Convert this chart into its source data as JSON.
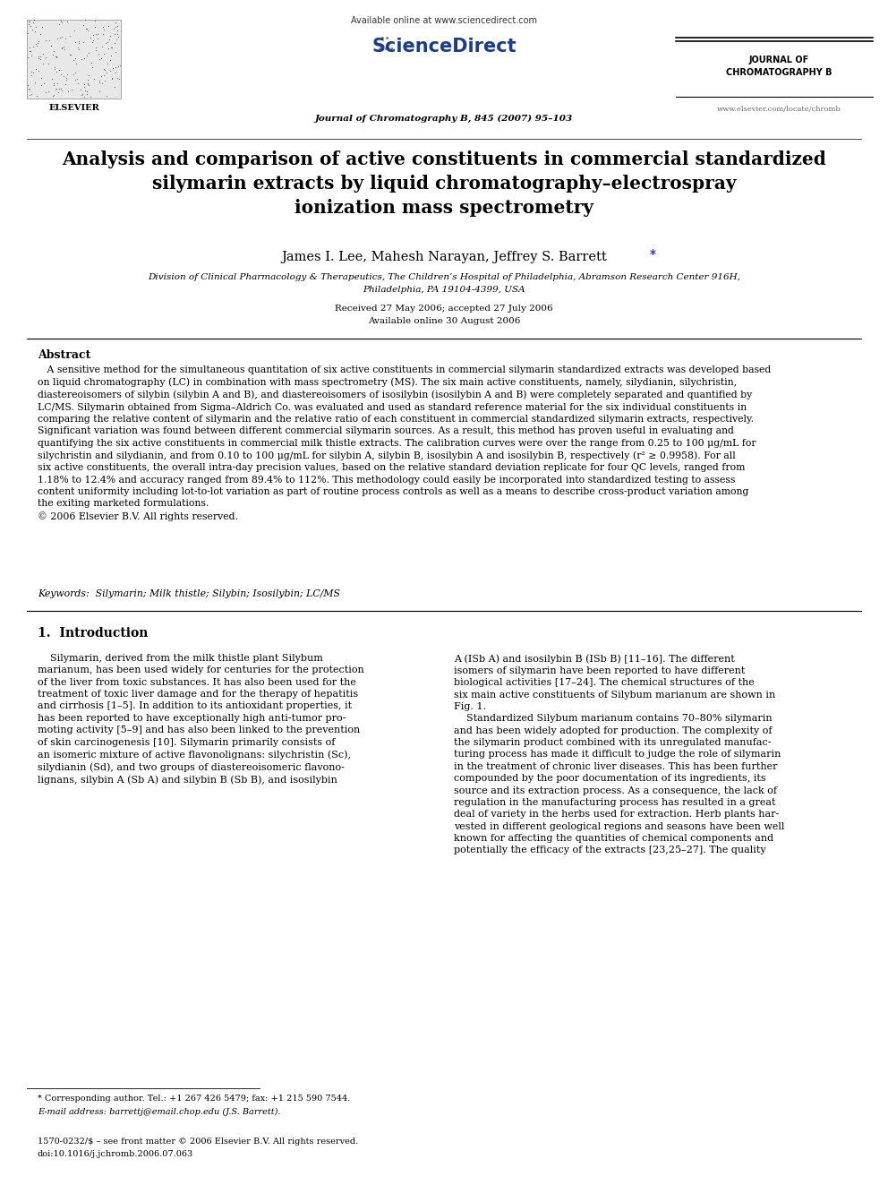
{
  "bg_color": "#ffffff",
  "figsize": [
    9.92,
    13.23
  ],
  "dpi": 100,
  "header": {
    "available_online": "Available online at www.sciencedirect.com",
    "sciencedirect": "● ScienceDirect",
    "journal_name_top": "JOURNAL OF\nCHROMATOGRAPHY B",
    "journal_line": "Journal of Chromatography B, 845 (2007) 95–103",
    "elsevier": "ELSEVIER",
    "website": "www.elsevier.com/locate/chromb"
  },
  "title": "Analysis and comparison of active constituents in commercial standardized\nsilymarin extracts by liquid chromatography–electrospray\nionization mass spectrometry",
  "authors": "James I. Lee, Mahesh Narayan, Jeffrey S. Barrett",
  "authors_star": "*",
  "affiliation_line1": "Division of Clinical Pharmacology & Therapeutics, The Children’s Hospital of Philadelphia, Abramson Research Center 916H,",
  "affiliation_line2": "Philadelphia, PA 19104-4399, USA",
  "received": "Received 27 May 2006; accepted 27 July 2006",
  "available": "Available online 30 August 2006",
  "abstract_title": "Abstract",
  "abstract_indent": "   A sensitive method for the simultaneous quantitation of six active constituents in commercial silymarin standardized extracts was developed based",
  "abstract_body": "on liquid chromatography (LC) in combination with mass spectrometry (MS). The six main active constituents, namely, silydianin, silychristin,\ndiastereoisomers of silybin (silybin A and B), and diastereoisomers of isosilybin (isosilybin A and B) were completely separated and quantified by\nLC/MS. Silymarin obtained from Sigma–Aldrich Co. was evaluated and used as standard reference material for the six individual constituents in\ncomparing the relative content of silymarin and the relative ratio of each constituent in commercial standardized silymarin extracts, respectively.\nSignificant variation was found between different commercial silymarin sources. As a result, this method has proven useful in evaluating and\nquantifying the six active constituents in commercial milk thistle extracts. The calibration curves were over the range from 0.25 to 100 μg/mL for\nsilychristin and silydianin, and from 0.10 to 100 μg/mL for silybin A, silybin B, isosilybin A and isosilybin B, respectively (r² ≥ 0.9958). For all\nsix active constituents, the overall intra-day precision values, based on the relative standard deviation replicate for four QC levels, ranged from\n1.18% to 12.4% and accuracy ranged from 89.4% to 112%. This methodology could easily be incorporated into standardized testing to assess\ncontent uniformity including lot-to-lot variation as part of routine process controls as well as a means to describe cross-product variation among\nthe exiting marketed formulations.\n© 2006 Elsevier B.V. All rights reserved.",
  "keywords": "Keywords:  Silymarin; Milk thistle; Silybin; Isosilybin; LC/MS",
  "section1_title": "1.  Introduction",
  "intro_col1_para": "    Silymarin, derived from the milk thistle plant Silybum\nmarianum, has been used widely for centuries for the protection\nof the liver from toxic substances. It has also been used for the\ntreatment of toxic liver damage and for the therapy of hepatitis\nand cirrhosis [1–5]. In addition to its antioxidant properties, it\nhas been reported to have exceptionally high anti-tumor pro-\nmoting activity [5–9] and has also been linked to the prevention\nof skin carcinogenesis [10]. Silymarin primarily consists of\nan isomeric mixture of active flavonolignans: silychristin (Sc),\nsilydianin (Sd), and two groups of diastereoisomeric flavono-\nlignans, silybin A (Sb A) and silybin B (Sb B), and isosilybin",
  "intro_col2_para": "A (ISb A) and isosilybin B (ISb B) [11–16]. The different\nisomers of silymarin have been reported to have different\nbiological activities [17–24]. The chemical structures of the\nsix main active constituents of Silybum marianum are shown in\nFig. 1.\n    Standardized Silybum marianum contains 70–80% silymarin\nand has been widely adopted for production. The complexity of\nthe silymarin product combined with its unregulated manufac-\nturing process has made it difficult to judge the role of silymarin\nin the treatment of chronic liver diseases. This has been further\ncompounded by the poor documentation of its ingredients, its\nsource and its extraction process. As a consequence, the lack of\nregulation in the manufacturing process has resulted in a great\ndeal of variety in the herbs used for extraction. Herb plants har-\nvested in different geological regions and seasons have been well\nknown for affecting the quantities of chemical components and\npotentially the efficacy of the extracts [23,25–27]. The quality",
  "footnote_line1": "* Corresponding author. Tel.: +1 267 426 5479; fax: +1 215 590 7544.",
  "footnote_line2": "E-mail address: barrettj@email.chop.edu (J.S. Barrett).",
  "issn": "1570-0232/$ – see front matter © 2006 Elsevier B.V. All rights reserved.",
  "doi": "doi:10.1016/j.jchromb.2006.07.063"
}
